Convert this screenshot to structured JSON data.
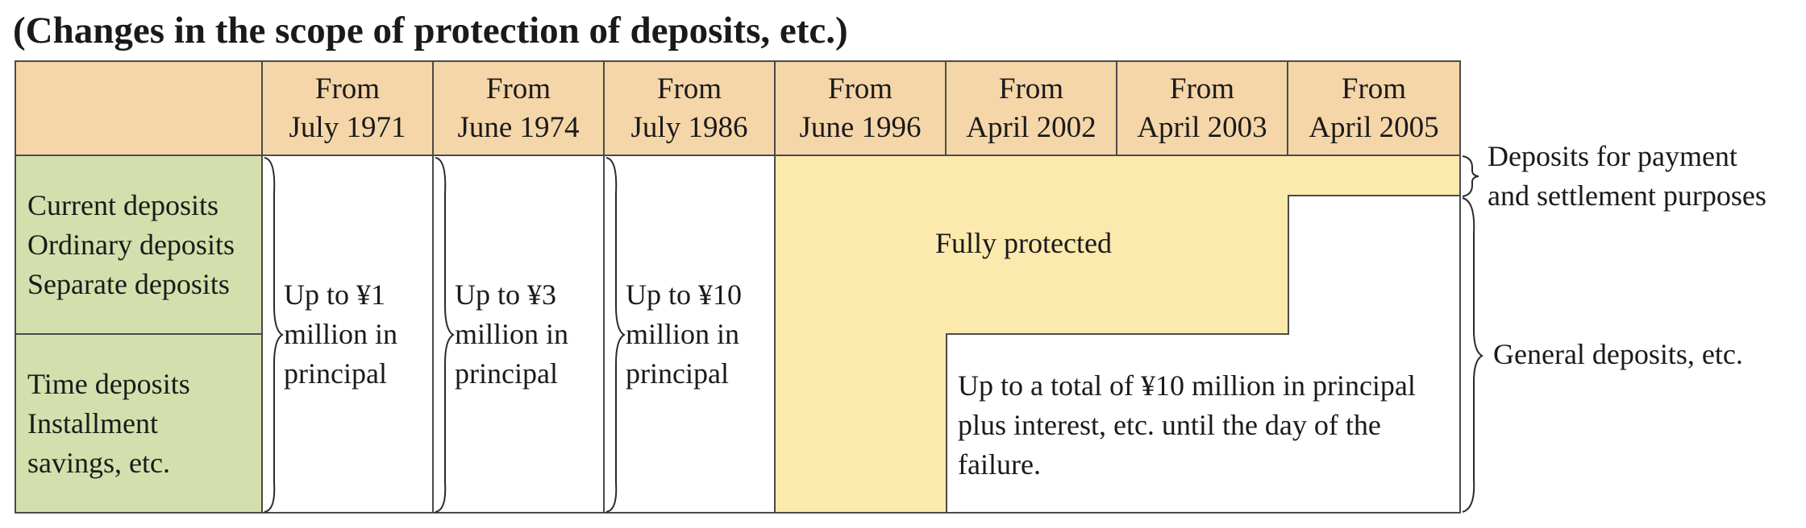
{
  "title": "(Changes in the scope of protection of deposits, etc.)",
  "header": {
    "periods": [
      {
        "line1": "From",
        "line2": "July 1971"
      },
      {
        "line1": "From",
        "line2": "June 1974"
      },
      {
        "line1": "From",
        "line2": "July 1986"
      },
      {
        "line1": "From",
        "line2": "June 1996"
      },
      {
        "line1": "From",
        "line2": "April 2002"
      },
      {
        "line1": "From",
        "line2": "April 2003"
      },
      {
        "line1": "From",
        "line2": "April 2005"
      }
    ]
  },
  "categories": {
    "demand": [
      "Current deposits",
      "Ordinary deposits",
      "Separate deposits"
    ],
    "time": [
      "Time deposits",
      "Installment",
      "savings, etc."
    ]
  },
  "limits": [
    {
      "line1": "Up to ¥1",
      "line2": "million in",
      "line3": "principal"
    },
    {
      "line1": "Up to ¥3",
      "line2": "million in",
      "line3": "principal"
    },
    {
      "line1": "Up to ¥10",
      "line2": "million in",
      "line3": "principal"
    }
  ],
  "fully_protected": "Fully protected",
  "total_limit": {
    "line1": "Up to a total of ¥10 million in principal",
    "line2": "plus interest, etc. until the day of the",
    "line3": "failure."
  },
  "side_labels": {
    "payment_line1": "Deposits for payment",
    "payment_line2": "and settlement purposes",
    "general": "General deposits, etc."
  },
  "colors": {
    "header_bg": "#f5d6a8",
    "category_bg": "#d3e0ad",
    "protected_bg": "#fbe9ad",
    "border": "#4a4a4a"
  }
}
